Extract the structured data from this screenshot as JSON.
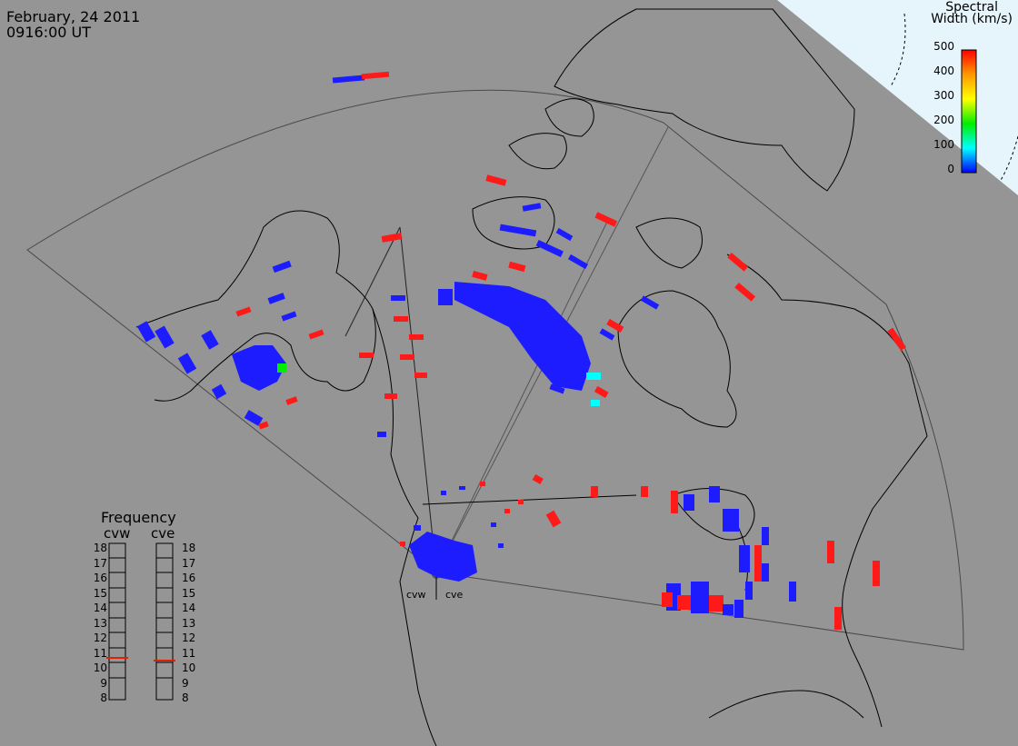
{
  "header": {
    "date": "February, 24 2011",
    "time": "0916:00 UT"
  },
  "colorbar": {
    "title_line1": "Spectral",
    "title_line2": "Width (km/s)",
    "ticks": [
      "500",
      "400",
      "300",
      "200",
      "100",
      "0"
    ],
    "range": [
      0,
      500
    ],
    "colors": [
      "#ff0000",
      "#ff9900",
      "#ffff00",
      "#00ee00",
      "#00ffff",
      "#0000ff"
    ]
  },
  "frequency_panel": {
    "title": "Frequency",
    "columns": [
      {
        "label": "cvw",
        "selected": 10.7
      },
      {
        "label": "cve",
        "selected": 10.5
      }
    ],
    "ticks": [
      "18",
      "17",
      "16",
      "15",
      "14",
      "13",
      "12",
      "11",
      "10",
      "9",
      "8"
    ],
    "marker_color": "#e02000"
  },
  "radar_sites": [
    {
      "name": "cvw"
    },
    {
      "name": "cve"
    }
  ],
  "colors": {
    "map_background": "#959595",
    "ocean_pole": "#e6f4fb",
    "coast": "#000000",
    "scatter_low": "#1c1cff",
    "scatter_high": "#ff1a1a"
  }
}
